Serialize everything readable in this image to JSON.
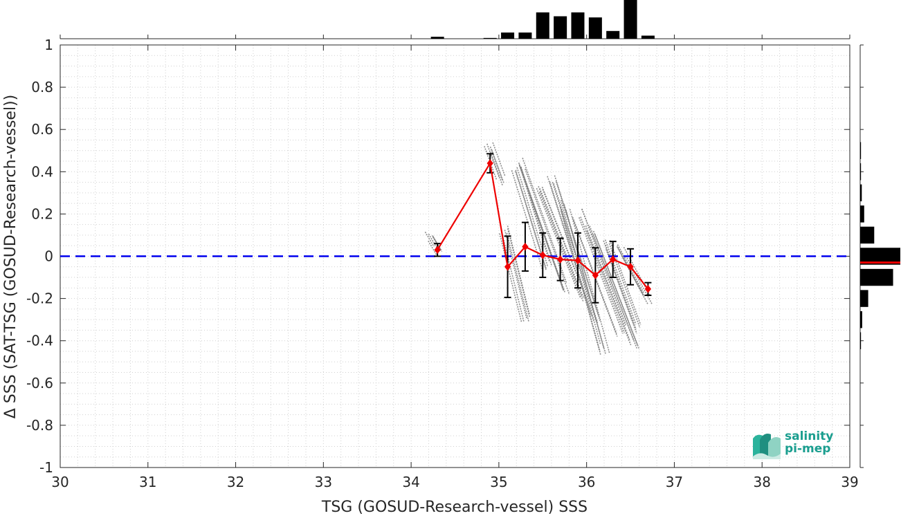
{
  "chart_data": {
    "type": "scatter",
    "xlabel": "TSG (GOSUD-Research-vessel) SSS",
    "ylabel": "Δ SSS (SAT-TSG (GOSUD-Research-vessel))",
    "xlim": [
      30,
      39
    ],
    "ylim": [
      -1,
      1
    ],
    "x_ticks": [
      "30",
      "31",
      "32",
      "33",
      "34",
      "35",
      "36",
      "37",
      "38",
      "39"
    ],
    "y_ticks": [
      "-1",
      "-0.8",
      "-0.6",
      "-0.4",
      "-0.2",
      "0",
      "0.2",
      "0.4",
      "0.6",
      "0.8",
      "1"
    ],
    "grid": true,
    "zero_line": {
      "y": 0,
      "style": "dashed",
      "color": "#0000ee"
    },
    "binned_mean": {
      "color": "#ee0000",
      "x": [
        34.3,
        34.9,
        35.1,
        35.3,
        35.5,
        35.7,
        35.9,
        36.1,
        36.3,
        36.5,
        36.7
      ],
      "y": [
        0.03,
        0.44,
        -0.05,
        0.045,
        0.005,
        -0.015,
        -0.02,
        -0.09,
        -0.015,
        -0.05,
        -0.155
      ],
      "std": [
        0.03,
        0.045,
        0.145,
        0.115,
        0.105,
        0.1,
        0.13,
        0.13,
        0.085,
        0.085,
        0.03
      ]
    },
    "scatter_points": {
      "color": "#808080",
      "description_segments": [
        {
          "x0": 34.22,
          "y0": 0.09,
          "x1": 34.32,
          "y1": 0.02
        },
        {
          "x0": 34.88,
          "y0": 0.52,
          "x1": 35.02,
          "y1": 0.36
        },
        {
          "x0": 35.05,
          "y0": 0.12,
          "x1": 35.3,
          "y1": -0.3
        },
        {
          "x0": 35.2,
          "y0": 0.42,
          "x1": 35.55,
          "y1": -0.05
        },
        {
          "x0": 35.25,
          "y0": 0.44,
          "x1": 35.75,
          "y1": -0.15
        },
        {
          "x0": 35.45,
          "y0": 0.32,
          "x1": 35.95,
          "y1": -0.2
        },
        {
          "x0": 35.6,
          "y0": 0.36,
          "x1": 36.1,
          "y1": -0.3
        },
        {
          "x0": 35.75,
          "y0": 0.24,
          "x1": 36.2,
          "y1": -0.44
        },
        {
          "x0": 35.9,
          "y0": 0.2,
          "x1": 36.4,
          "y1": -0.35
        },
        {
          "x0": 36.05,
          "y0": 0.12,
          "x1": 36.55,
          "y1": -0.42
        },
        {
          "x0": 36.25,
          "y0": 0.05,
          "x1": 36.6,
          "y1": -0.35
        },
        {
          "x0": 36.4,
          "y0": 0.03,
          "x1": 36.7,
          "y1": -0.2
        }
      ]
    },
    "top_histogram": {
      "bin_centers": [
        34.3,
        34.9,
        35.1,
        35.3,
        35.5,
        35.7,
        35.9,
        36.1,
        36.3,
        36.5,
        36.7
      ],
      "relative_height": [
        0.05,
        0.02,
        0.16,
        0.16,
        0.68,
        0.58,
        0.68,
        0.55,
        0.2,
        1.0,
        0.08
      ]
    },
    "right_histogram": {
      "bin_centers": [
        0.5,
        0.4,
        0.3,
        0.2,
        0.1,
        0.0,
        -0.1,
        -0.2,
        -0.3,
        -0.4
      ],
      "relative_length": [
        0.02,
        0.02,
        0.04,
        0.1,
        0.35,
        1.0,
        0.82,
        0.2,
        0.05,
        0.02
      ]
    },
    "median_marker": {
      "y": -0.03,
      "color": "#ee0000"
    }
  },
  "logo": {
    "line1": "salinity",
    "line2": "pi-mep"
  }
}
